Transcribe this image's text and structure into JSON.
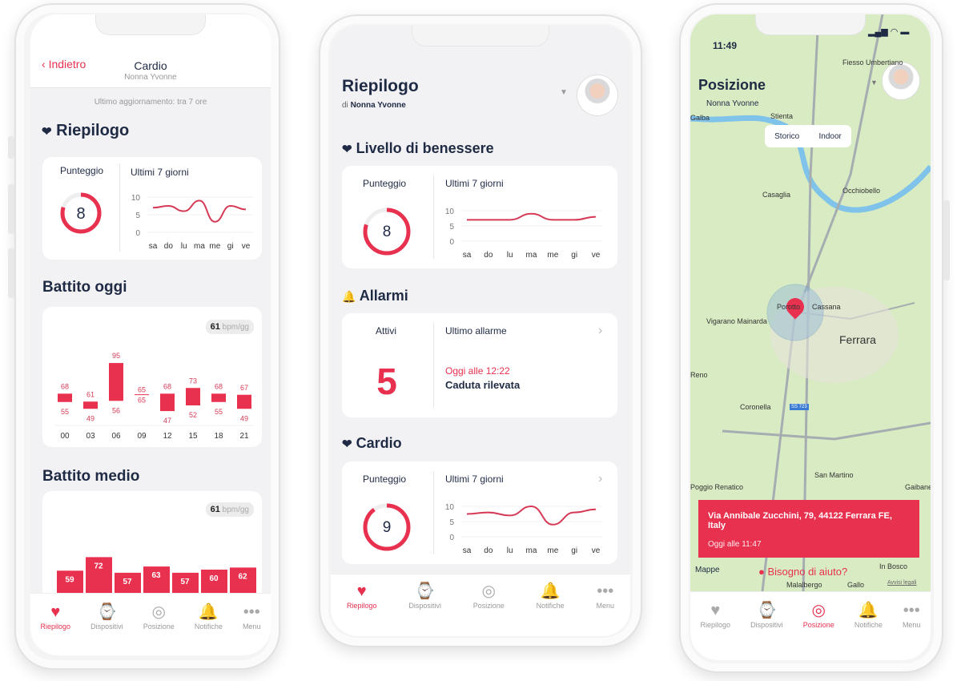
{
  "colors": {
    "accent": "#e8304f",
    "navy": "#1f2a44",
    "map_bg": "#d9ebc3",
    "river": "#7fc3ea"
  },
  "tabs": [
    {
      "label": "Riepilogo",
      "icon": "heart-icon"
    },
    {
      "label": "Dispositivi",
      "icon": "watch-icon"
    },
    {
      "label": "Posizione",
      "icon": "location-target-icon"
    },
    {
      "label": "Notifiche",
      "icon": "bell-icon"
    },
    {
      "label": "Menu",
      "icon": "more-icon"
    }
  ],
  "left": {
    "back": "Indietro",
    "title": "Cardio",
    "subtitle": "Nonna Yvonne",
    "updated": "Ultimo aggiornamento: tra 7 ore",
    "summary": {
      "title": "Riepilogo",
      "score_label": "Punteggio",
      "score": "8",
      "score_fraction": 0.8,
      "week_label": "Ultimi 7 giorni"
    },
    "today": {
      "title": "Battito oggi",
      "badge_value": "61",
      "badge_unit": "bpm/gg"
    },
    "average": {
      "title": "Battito medio",
      "badge_value": "61",
      "badge_unit": "bpm/gg"
    },
    "active_tab": 0
  },
  "middle": {
    "title": "Riepilogo",
    "subtitle_prefix": "di",
    "subtitle_name": "Nonna Yvonne",
    "wellbeing": {
      "title": "Livello di benessere",
      "score_label": "Punteggio",
      "score": "8",
      "score_fraction": 0.8,
      "week_label": "Ultimi 7 giorni"
    },
    "alarms": {
      "title": "Allarmi",
      "active_label": "Attivi",
      "active_count": "5",
      "last_label": "Ultimo allarme",
      "last_time": "Oggi alle 12:22",
      "last_event": "Caduta rilevata"
    },
    "cardio": {
      "title": "Cardio",
      "score_label": "Punteggio",
      "score": "9",
      "score_fraction": 0.9,
      "week_label": "Ultimi 7 giorni"
    },
    "active_tab": 0
  },
  "right": {
    "time": "11:49",
    "title": "Posizione",
    "subtitle": "Nonna Yvonne",
    "segments": [
      "Storico",
      "Indoor"
    ],
    "address": "Via Annibale Zucchini, 79, 44122 Ferrara FE, Italy",
    "address_time": "Oggi alle 11:47",
    "help": "Bisogno di aiuto?",
    "map_brand": "Mappe",
    "legal": "Avvisi legali",
    "places": [
      "Fiesso Umbertiano",
      "Galba",
      "Stienta",
      "Casaglia",
      "Occhiobello",
      "Vigarano Mainarda",
      "Porotto",
      "Cassana",
      "Ferrara",
      "Reno",
      "Coronella",
      "San Martino",
      "Poggio Renatico",
      "Gaibanella Sant'E",
      "In Bosco",
      "Gallo",
      "Malalbergo",
      "SS 723"
    ],
    "active_tab": 2
  },
  "chart_data": [
    {
      "type": "line",
      "title": "Ultimi 7 giorni",
      "categories": [
        "sa",
        "do",
        "lu",
        "ma",
        "me",
        "gi",
        "ve"
      ],
      "yticks": [
        0,
        5,
        10
      ],
      "ylim": [
        0,
        10
      ],
      "values": [
        7,
        7.5,
        6,
        9,
        3,
        7.5,
        6.5
      ]
    },
    {
      "type": "line",
      "title": "Ultimi 7 giorni",
      "categories": [
        "sa",
        "do",
        "lu",
        "ma",
        "me",
        "gi",
        "ve"
      ],
      "yticks": [
        0,
        5,
        10
      ],
      "ylim": [
        0,
        10
      ],
      "values": [
        7,
        7,
        7,
        9,
        7,
        7,
        8
      ]
    },
    {
      "type": "line",
      "title": "Ultimi 7 giorni",
      "categories": [
        "sa",
        "do",
        "lu",
        "ma",
        "me",
        "gi",
        "ve"
      ],
      "yticks": [
        0,
        5,
        10
      ],
      "ylim": [
        0,
        10
      ],
      "values": [
        7.5,
        8,
        7,
        10,
        4,
        8,
        9
      ]
    },
    {
      "type": "bar",
      "title": "Battito oggi",
      "categories": [
        "00",
        "03",
        "06",
        "09",
        "12",
        "15",
        "18",
        "21"
      ],
      "series": [
        {
          "name": "max",
          "values": [
            68,
            61,
            95,
            65,
            68,
            73,
            68,
            67
          ]
        },
        {
          "name": "min",
          "values": [
            55,
            49,
            56,
            65,
            47,
            52,
            55,
            49
          ]
        }
      ]
    },
    {
      "type": "bar",
      "title": "Battito medio",
      "values": [
        59,
        72,
        57,
        63,
        57,
        60,
        62
      ]
    }
  ]
}
